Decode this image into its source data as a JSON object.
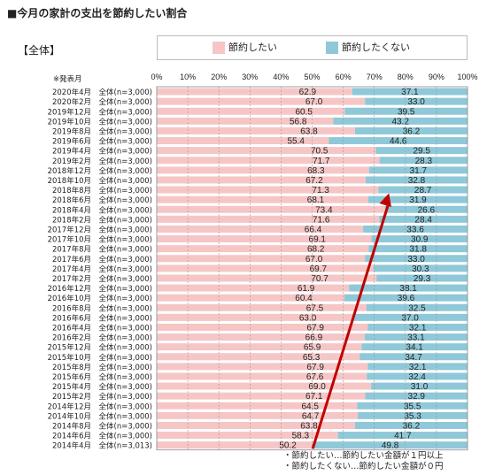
{
  "title": "■今月の家計の支出を節約したい割合",
  "segment_label": "【全体】",
  "date_header": "※発表月",
  "legend": [
    {
      "label": "節約したい",
      "color": "#f6c6c6"
    },
    {
      "label": "節約したくない",
      "color": "#8fc8d8"
    }
  ],
  "footnotes": [
    "・節約したい…節約したい金額が１円以上",
    "・節約したくない…節約したい金額が０円"
  ],
  "chart_data": {
    "type": "bar",
    "orientation": "horizontal-stacked-100",
    "x_ticks": [
      "0%",
      "10%",
      "20%",
      "30%",
      "40%",
      "50%",
      "60%",
      "70%",
      "80%",
      "90%",
      "100%"
    ],
    "xlim": [
      0,
      100
    ],
    "grid": true,
    "categories": [
      "2020年4月　全体(n=3,000)",
      "2020年2月　全体(n=3,000)",
      "2019年12月　全体(n=3,000)",
      "2019年10月　全体(n=3,000)",
      "2019年8月　全体(n=3,000)",
      "2019年6月　全体(n=3,000)",
      "2019年4月　全体(n=3,000)",
      "2019年2月　全体(n=3,000)",
      "2018年12月　全体(n=3,000)",
      "2018年10月　全体(n=3,000)",
      "2018年8月　全体(n=3,000)",
      "2018年6月　全体(n=3,000)",
      "2018年4月　全体(n=3,000)",
      "2018年2月　全体(n=3,000)",
      "2017年12月　全体(n=3,000)",
      "2017年10月　全体(n=3,000)",
      "2017年8月　全体(n=3,000)",
      "2017年6月　全体(n=3,000)",
      "2017年4月　全体(n=3,000)",
      "2017年2月　全体(n=3,000)",
      "2016年12月　全体(n=3,000)",
      "2016年10月　全体(n=3,000)",
      "2016年8月　全体(n=3,000)",
      "2016年6月　全体(n=3,000)",
      "2016年4月　全体(n=3,000)",
      "2016年2月　全体(n=3,000)",
      "2015年12月　全体(n=3,000)",
      "2015年10月　全体(n=3,000)",
      "2015年8月　全体(n=3,000)",
      "2015年6月　全体(n=3,000)",
      "2015年4月　全体(n=3,000)",
      "2015年2月　全体(n=3,000)",
      "2014年12月　全体(n=3,000)",
      "2014年10月　全体(n=3,000)",
      "2014年8月　全体(n=3,000)",
      "2014年6月　全体(n=3,000)",
      "2014年4月　全体(n=3,013)"
    ],
    "series": [
      {
        "name": "節約したい",
        "color": "#f6c6c6",
        "values": [
          62.9,
          67.0,
          60.5,
          56.8,
          63.8,
          55.4,
          70.5,
          71.7,
          68.3,
          67.2,
          71.3,
          68.1,
          73.4,
          71.6,
          66.4,
          69.1,
          68.2,
          67.0,
          69.7,
          70.7,
          61.9,
          60.4,
          67.5,
          63.0,
          67.9,
          66.9,
          65.9,
          65.3,
          67.9,
          67.6,
          69.0,
          67.1,
          64.5,
          64.7,
          63.8,
          58.3,
          50.2
        ]
      },
      {
        "name": "節約したくない",
        "color": "#8fc8d8",
        "values": [
          37.1,
          33.0,
          39.5,
          43.2,
          36.2,
          44.6,
          29.5,
          28.3,
          31.7,
          32.8,
          28.7,
          31.9,
          26.6,
          28.4,
          33.6,
          30.9,
          31.8,
          33.0,
          30.3,
          29.3,
          38.1,
          39.6,
          32.5,
          37.0,
          32.1,
          33.1,
          34.1,
          34.7,
          32.1,
          32.4,
          31.0,
          32.9,
          35.5,
          35.3,
          36.2,
          41.7,
          49.8
        ]
      }
    ],
    "annotation": {
      "type": "arrow",
      "from": "2014年4月",
      "to": "2018年8月",
      "color": "#c00000"
    }
  }
}
